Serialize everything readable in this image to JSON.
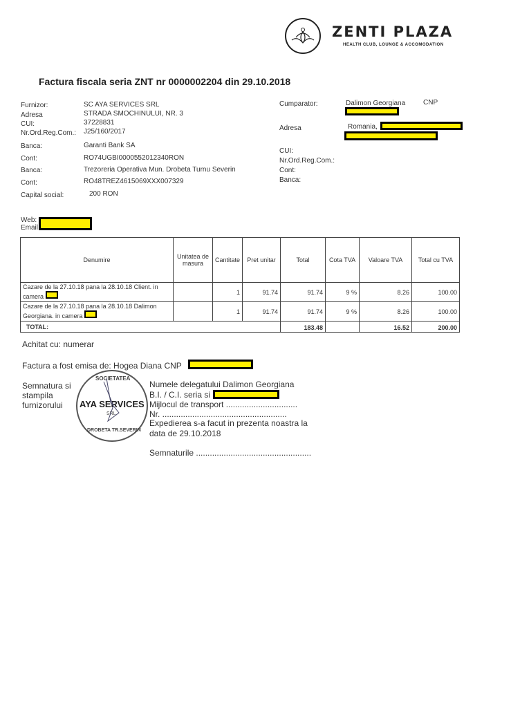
{
  "logo": {
    "name": "ZENTI PLAZA",
    "tagline": "HEALTH CLUB, LOUNGE & ACCOMODATION"
  },
  "title": "Factura fiscala  seria ZNT nr 0000002204 din 29.10.2018",
  "supplier": [
    {
      "label": "Furnizor:",
      "value": "SC AYA SERVICES SRL"
    },
    {
      "label": "Adresa",
      "value": "STRADA SMOCHINULUI, NR. 3"
    },
    {
      "label": "CUI:",
      "value": "37228831"
    },
    {
      "label": "Nr.Ord.Reg.Com.:",
      "value": "J25/160/2017"
    },
    {
      "label": "Banca:",
      "value": "Garanti Bank SA"
    },
    {
      "label": "Cont:",
      "value": "RO74UGBI0000552012340RON"
    },
    {
      "label": "Banca:",
      "value": "Trezoreria Operativa Mun. Drobeta Turnu Severin"
    },
    {
      "label": "Cont:",
      "value": "RO48TREZ4615069XXX007329"
    },
    {
      "label": "Capital social:",
      "value": "200 RON"
    }
  ],
  "buyer": {
    "label": "Cumparator:",
    "name": "Dalimon Georgiana",
    "cnp_label": "CNP",
    "address_label": "Adresa",
    "address": "Romania,",
    "cui": "CUI:",
    "reg": "Nr.Ord.Reg.Com.:",
    "cont": "Cont:",
    "banca": "Banca:"
  },
  "web_label": "Web:",
  "email_label": "Email",
  "table": {
    "headers": [
      "Denumire",
      "Unitatea de masura",
      "Cantitate",
      "Pret unitar",
      "Total",
      "Cota TVA",
      "Valoare TVA",
      "Total cu TVA"
    ],
    "rows": [
      {
        "desc": "Cazare de la 27.10.18 pana la 28.10.18 Client. in camera",
        "um": "",
        "qty": "1",
        "price": "91.74",
        "total": "91.74",
        "vat_rate": "9 %",
        "vat": "8.26",
        "total_vat": "100.00"
      },
      {
        "desc": "Cazare de la 27.10.18 pana la 28.10.18 Dalimon Georgiana. in camera",
        "um": "",
        "qty": "1",
        "price": "91.74",
        "total": "91.74",
        "vat_rate": "9 %",
        "vat": "8.26",
        "total_vat": "100.00"
      }
    ],
    "total_label": "TOTAL:",
    "total": "183.48",
    "total_vat_value": "16.52",
    "grand_total": "200.00"
  },
  "paid": "Achitat cu: numerar",
  "issued_by": "Factura a fost emisa de:  Hogea Diana CNP",
  "signature_label": [
    "Semnatura si",
    "stampila",
    "furnizorului"
  ],
  "stamp": {
    "top": "SOCIETATEA",
    "center": "AYA SERVICES",
    "sub": "SRL",
    "bottom": "DROBETA TR.SEVERIN"
  },
  "delegate": [
    "Numele delegatului Dalimon Georgiana",
    "B.I. / C.I. seria si nr.",
    "Mijlocul de transport ...............................",
    "Nr. ......................................................",
    "Expedierea s-a facut in prezenta noastra la",
    "data de 29.10.2018"
  ],
  "signatures": "Semnaturile ..................................................",
  "redaction_color": "#ffee00"
}
